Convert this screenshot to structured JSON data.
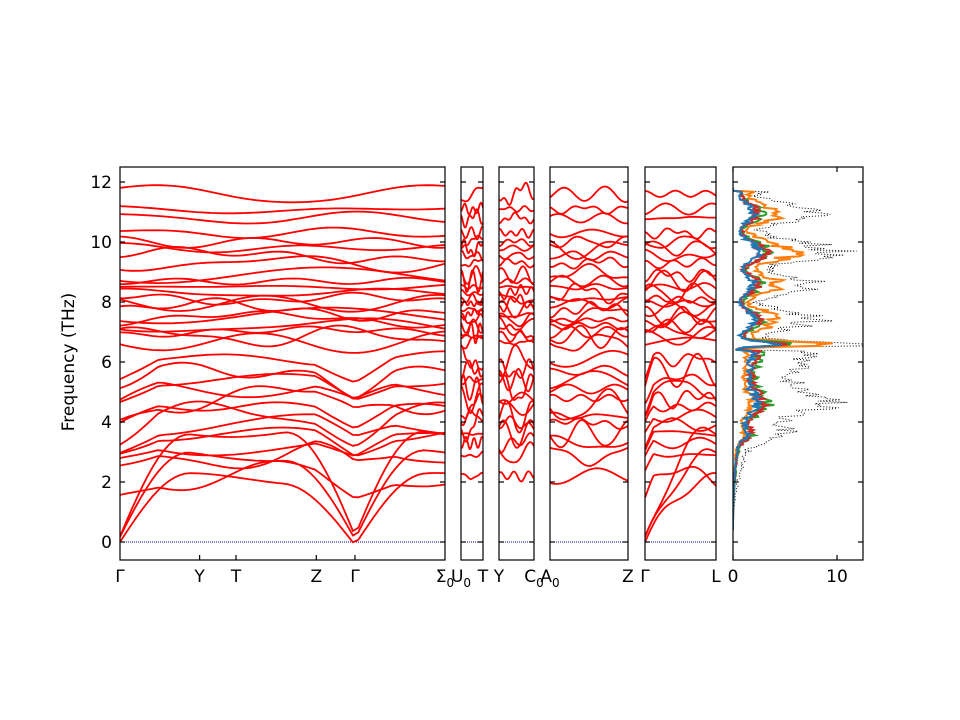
{
  "chart_data": {
    "type": "line",
    "ylabel": "Frequency (THz)",
    "ylim": [
      -0.6,
      12.5
    ],
    "yticks": [
      0,
      2,
      4,
      6,
      8,
      10,
      12
    ],
    "band_color": "#ff0000",
    "zero_line_color": "#0000aa",
    "panels": [
      {
        "id": "p1",
        "labels": [
          {
            "text": "Γ",
            "sub": "",
            "pos": 0.0
          },
          {
            "text": "Y",
            "sub": "",
            "pos": 0.245
          },
          {
            "text": "T",
            "sub": "",
            "pos": 0.357
          },
          {
            "text": "Z",
            "sub": "",
            "pos": 0.604
          },
          {
            "text": "Γ",
            "sub": "",
            "pos": 0.723
          },
          {
            "text": "Σ",
            "sub": "0",
            "pos": 1.0
          }
        ]
      },
      {
        "id": "p2",
        "labels": [
          {
            "text": "U",
            "sub": "0",
            "pos": 0.0
          },
          {
            "text": "T",
            "sub": "",
            "pos": 1.0
          }
        ]
      },
      {
        "id": "p3",
        "labels": [
          {
            "text": "Y",
            "sub": "",
            "pos": 0.0
          },
          {
            "text": "C",
            "sub": "0",
            "pos": 1.0
          }
        ]
      },
      {
        "id": "p4",
        "labels": [
          {
            "text": "A",
            "sub": "0",
            "pos": 0.0
          },
          {
            "text": "Z",
            "sub": "",
            "pos": 1.0
          }
        ]
      },
      {
        "id": "p5",
        "labels": [
          {
            "text": "Γ",
            "sub": "",
            "pos": 0.0
          },
          {
            "text": "L",
            "sub": "",
            "pos": 1.0
          }
        ]
      }
    ],
    "optical_band_levels": [
      6.65,
      6.85,
      7.0,
      7.2,
      7.4,
      7.55,
      7.75,
      7.95,
      8.1,
      8.3,
      8.5,
      8.7,
      8.9,
      9.3,
      9.55,
      9.8,
      10.0,
      10.3,
      10.8,
      11.1,
      11.6
    ],
    "mid_band_levels": [
      2.2,
      2.9,
      3.3,
      3.6,
      3.9,
      4.2,
      4.5,
      4.8,
      5.1,
      5.4,
      5.7,
      6.1
    ],
    "dos": {
      "xlim": [
        0,
        12.5
      ],
      "xticks": [
        0,
        10
      ],
      "series": [
        {
          "color": "#000000",
          "style": "dotted",
          "scale": 11.5
        },
        {
          "color": "#ff7f0e",
          "style": "solid",
          "scale": 6.5
        },
        {
          "color": "#2ca02c",
          "style": "solid",
          "scale": 4.0
        },
        {
          "color": "#d62728",
          "style": "solid",
          "scale": 3.6
        },
        {
          "color": "#1f77b4",
          "style": "solid",
          "scale": 3.0
        }
      ]
    }
  }
}
